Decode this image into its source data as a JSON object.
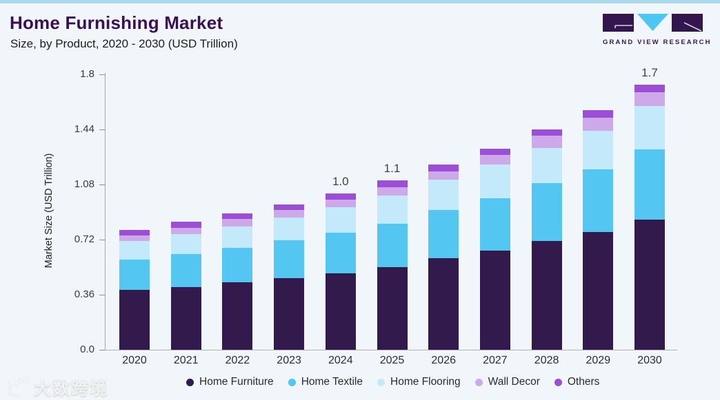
{
  "header": {
    "title": "Home Furnishing Market",
    "subtitle": "Size, by Product, 2020 - 2030 (USD Trillion)",
    "logo_text": "GRAND VIEW RESEARCH"
  },
  "chart_data": {
    "type": "bar",
    "stacked": true,
    "title": "Home Furnishing Market Size, by Product, 2020 - 2030 (USD Trillion)",
    "xlabel": "",
    "ylabel": "Market Size (USD Trillion)",
    "categories": [
      "2020",
      "2021",
      "2022",
      "2023",
      "2024",
      "2025",
      "2026",
      "2027",
      "2028",
      "2029",
      "2030"
    ],
    "series": [
      {
        "name": "Home Furniture",
        "color": "#321a4d",
        "values": [
          0.39,
          0.41,
          0.44,
          0.47,
          0.5,
          0.54,
          0.6,
          0.65,
          0.71,
          0.77,
          0.85
        ]
      },
      {
        "name": "Home Textile",
        "color": "#53c6f1",
        "values": [
          0.2,
          0.215,
          0.225,
          0.245,
          0.265,
          0.285,
          0.315,
          0.34,
          0.38,
          0.41,
          0.46
        ]
      },
      {
        "name": "Home Flooring",
        "color": "#c4e9fb",
        "values": [
          0.12,
          0.13,
          0.142,
          0.15,
          0.165,
          0.185,
          0.195,
          0.22,
          0.23,
          0.253,
          0.285
        ]
      },
      {
        "name": "Wall Decor",
        "color": "#cda9ea",
        "values": [
          0.037,
          0.041,
          0.048,
          0.047,
          0.05,
          0.052,
          0.056,
          0.063,
          0.078,
          0.083,
          0.087
        ]
      },
      {
        "name": "Others",
        "color": "#9c4fd6",
        "values": [
          0.035,
          0.04,
          0.038,
          0.039,
          0.042,
          0.044,
          0.046,
          0.042,
          0.042,
          0.052,
          0.051
        ]
      }
    ],
    "total_labels": [
      "",
      "",
      "",
      "",
      "1.0",
      "1.1",
      "",
      "",
      "",
      "",
      "1.7"
    ],
    "y_ticks": [
      0,
      0.36,
      0.72,
      1.08,
      1.44,
      1.8
    ],
    "y_tick_labels": [
      "0.0",
      "0.36",
      "0.72",
      "1.08",
      "1.44",
      "1.8"
    ],
    "ylim": [
      0,
      1.8
    ],
    "grid": false,
    "legend_position": "bottom"
  },
  "watermark": {
    "text": "大数跨境"
  },
  "accent_colors": {
    "top_bar": "#a9d7ee",
    "title_purple": "#3b0f58",
    "logo_purple": "#34164f",
    "logo_blue": "#4cc6f2"
  }
}
